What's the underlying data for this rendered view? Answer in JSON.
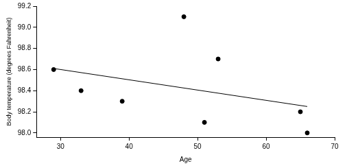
{
  "chart_data": {
    "type": "scatter",
    "x_label": "Age",
    "y_label": "Body temperature (degrees Fahrenheit)",
    "series": [
      {
        "type": "scatter",
        "color": "#000000",
        "marker": "circle",
        "x": [
          29,
          33,
          39,
          48,
          51,
          53,
          65,
          66
        ],
        "values": [
          98.6,
          98.4,
          98.3,
          99.1,
          98.1,
          98.7,
          98.2,
          98.0
        ]
      },
      {
        "type": "line",
        "color": "#000000",
        "line_style": "solid",
        "x": [
          29,
          66
        ],
        "values": [
          98.61,
          98.25
        ]
      }
    ],
    "xlim": [
      26.5,
      70
    ],
    "xticks": [
      30,
      40,
      50,
      60,
      70
    ],
    "ylim": [
      97.96,
      99.2
    ],
    "yticks": [
      {
        "value": 98.0,
        "label": "98.0"
      },
      98.2,
      98.4,
      98.6,
      98.8,
      {
        "value": 99.0,
        "label": "99.0"
      },
      99.2
    ],
    "grid": false
  }
}
